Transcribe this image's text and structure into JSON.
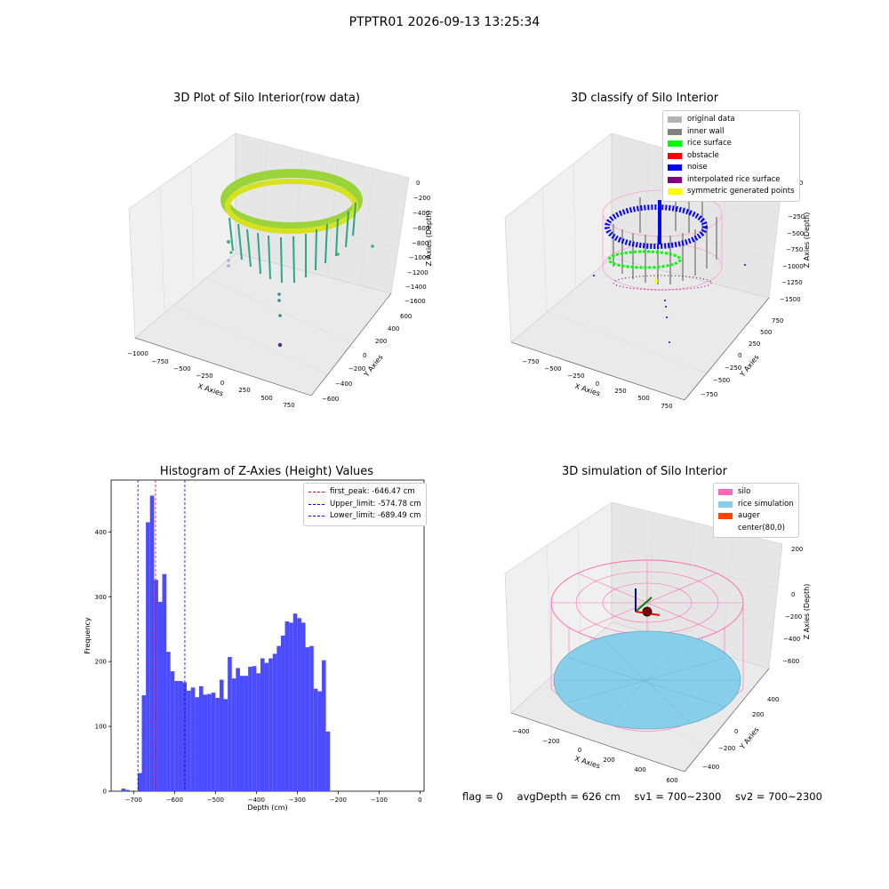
{
  "figure_title": "PTPTR01 2026-09-13 13:25:34",
  "chart_data": [
    {
      "type": "scatter",
      "dimensions": 3,
      "title": "3D Plot of Silo Interior(row data)",
      "xlabel": "X Axies",
      "ylabel": "Y Axies",
      "zlabel": "Z Axies (Depth)",
      "x_ticks": [
        "−1000",
        "−750",
        "−500",
        "−250",
        "0",
        "250",
        "500",
        "750"
      ],
      "y_ticks": [
        "−600",
        "−400",
        "−200",
        "0",
        "200",
        "400",
        "600"
      ],
      "z_ticks": [
        "0",
        "−200",
        "−400",
        "−600",
        "−800",
        "−1000",
        "−1200",
        "−1400",
        "−1600"
      ],
      "colormap": "viridis"
    },
    {
      "type": "scatter",
      "dimensions": 3,
      "title": "3D classify of Silo Interior",
      "xlabel": "X Axies",
      "ylabel": "Y Axies",
      "zlabel": "Z Axies (Depth)",
      "x_ticks": [
        "−750",
        "−500",
        "−250",
        "0",
        "250",
        "500",
        "750"
      ],
      "y_ticks": [
        "−750",
        "−500",
        "−250",
        "0",
        "250",
        "500",
        "750"
      ],
      "z_ticks": [
        "0",
        "−250",
        "−500",
        "−750",
        "−1000",
        "−1250",
        "−1500"
      ],
      "extra_tick": "250",
      "legend": [
        {
          "name": "original data",
          "color": "#b3b3b3"
        },
        {
          "name": "inner wall",
          "color": "#808080"
        },
        {
          "name": "rice surface",
          "color": "#00ff00"
        },
        {
          "name": "obstacle",
          "color": "#ff0000"
        },
        {
          "name": "noise",
          "color": "#0000ff"
        },
        {
          "name": "interpolated rice surface",
          "color": "#800080"
        },
        {
          "name": "symmetric generated points",
          "color": "#ffff00"
        }
      ],
      "legend_position": "top-right"
    },
    {
      "type": "bar",
      "title": "Histogram of Z-Axies (Height) Values",
      "xlabel": "Depth (cm)",
      "ylabel": "Frequency",
      "xlim": [
        -755,
        10
      ],
      "ylim": [
        0,
        480
      ],
      "x_ticks": [
        -700,
        -600,
        -500,
        -400,
        -300,
        -200,
        -100,
        0
      ],
      "x_tick_labels": [
        "−700",
        "−600",
        "−500",
        "−400",
        "−300",
        "−200",
        "−100",
        "0"
      ],
      "y_ticks": [
        0,
        100,
        200,
        300,
        400
      ],
      "bin_start": -730,
      "bin_width": 10,
      "values": [
        4,
        2,
        0,
        0,
        28,
        148,
        415,
        456,
        326,
        292,
        335,
        215,
        185,
        170,
        170,
        168,
        155,
        160,
        145,
        162,
        149,
        150,
        152,
        144,
        172,
        142,
        207,
        174,
        190,
        178,
        178,
        192,
        193,
        182,
        205,
        198,
        205,
        212,
        224,
        240,
        262,
        260,
        274,
        267,
        260,
        222,
        224,
        158,
        154,
        202,
        92
      ],
      "color": "#4c4cff",
      "lines": [
        {
          "label": "first_peak: -646.47 cm",
          "value": -646.47,
          "color": "#ff0000"
        },
        {
          "label": "Upper_limit: -574.78 cm",
          "value": -574.78,
          "color": "#0000ff"
        },
        {
          "label": "Lower_limit: -689.49 cm",
          "value": -689.49,
          "color": "#0000ff"
        }
      ],
      "legend_position": "top-right"
    },
    {
      "type": "surface",
      "dimensions": 3,
      "title": "3D simulation of Silo Interior",
      "xlabel": "X Axies",
      "ylabel": "Y Axies",
      "zlabel": "Z Axies (Depth)",
      "x_ticks": [
        "−400",
        "−200",
        "0",
        "200",
        "400",
        "600"
      ],
      "y_ticks": [
        "−400",
        "−200",
        "0",
        "200",
        "400"
      ],
      "z_ticks": [
        "200",
        "0",
        "−200",
        "−400",
        "−600"
      ],
      "legend": [
        {
          "name": "silo",
          "color": "#ff69b4"
        },
        {
          "name": "rice simulation",
          "color": "#87ceeb"
        },
        {
          "name": "auger",
          "color": "#ff4500"
        },
        {
          "name": "center(80,0)",
          "color": "#ffffff"
        }
      ],
      "legend_position": "top-right"
    }
  ],
  "footer": {
    "flag": "flag = 0",
    "avg_depth": "avgDepth = 626 cm",
    "sv1": "sv1 = 700~2300",
    "sv2": "sv2 = 700~2300"
  }
}
